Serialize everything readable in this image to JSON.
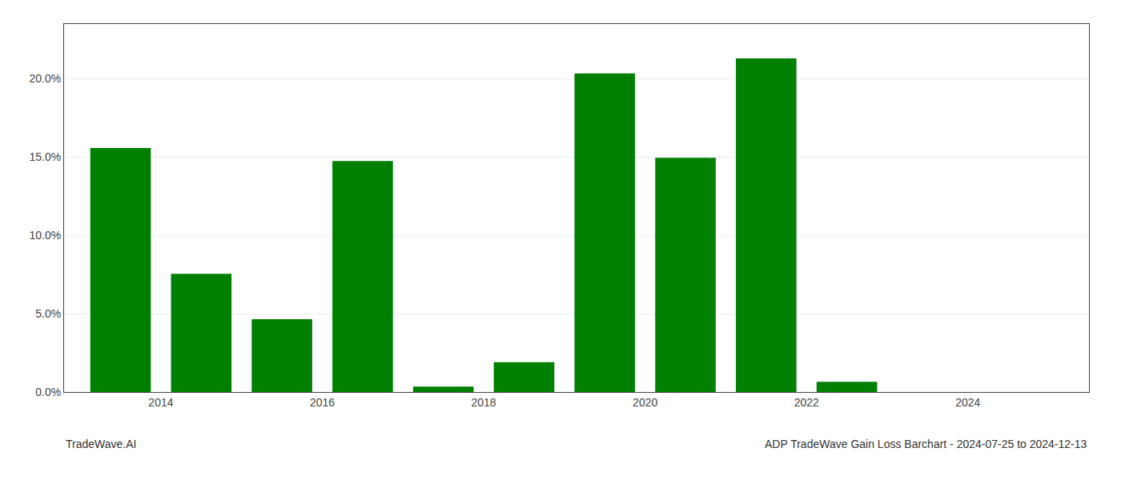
{
  "chart_data": {
    "type": "bar",
    "title": "ADP TradeWave Gain Loss Barchart - 2024-07-25 to 2024-12-13",
    "annotations": [
      "TradeWave.AI"
    ],
    "x": [
      2013,
      2014,
      2015,
      2016,
      2017,
      2018,
      2019,
      2020,
      2021,
      2022,
      2023
    ],
    "values": [
      0.1558,
      0.0755,
      0.0465,
      0.1475,
      0.0035,
      0.019,
      0.2035,
      0.1495,
      0.213,
      0.0065,
      0.0
    ],
    "color": "#008000",
    "xlim": [
      2012.3,
      2025.0
    ],
    "xticks": [
      {
        "value": 2013.5,
        "label": "2014"
      },
      {
        "value": 2015.5,
        "label": "2016"
      },
      {
        "value": 2017.5,
        "label": "2018"
      },
      {
        "value": 2019.5,
        "label": "2020"
      },
      {
        "value": 2021.5,
        "label": "2022"
      },
      {
        "value": 2023.5,
        "label": "2024"
      }
    ],
    "ylim": [
      0,
      0.235
    ],
    "yticks": [
      {
        "value": 0.0,
        "label": "0.0%"
      },
      {
        "value": 0.05,
        "label": "5.0%"
      },
      {
        "value": 0.1,
        "label": "10.0%"
      },
      {
        "value": 0.15,
        "label": "15.0%"
      },
      {
        "value": 0.2,
        "label": "20.0%"
      }
    ],
    "grid": true
  }
}
